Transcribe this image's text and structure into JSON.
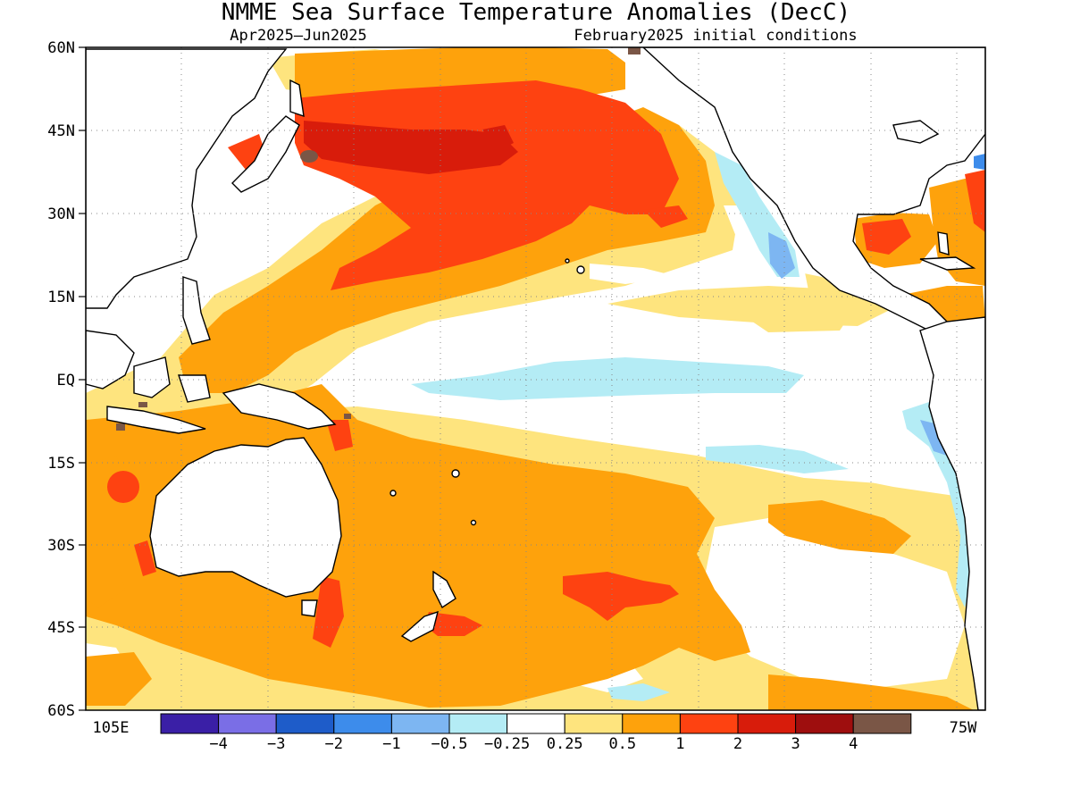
{
  "title": "NMME Sea Surface Temperature Anomalies (DecC)",
  "subtitle_left": "Apr2025–Jun2025",
  "subtitle_right": "February2025 initial conditions",
  "lat_labels": [
    "60N",
    "45N",
    "30N",
    "15N",
    "EQ",
    "15S",
    "30S",
    "45S",
    "60S"
  ],
  "lon_label_west": "105E",
  "lon_label_east": "75W",
  "legend": {
    "labels": [
      "−4",
      "−3",
      "−2",
      "−1",
      "−0.5",
      "−0.25",
      "0.25",
      "0.5",
      "1",
      "2",
      "3",
      "4"
    ],
    "colors": [
      "#3a1fa6",
      "#7a6ee6",
      "#1e5cc9",
      "#3d8ceb",
      "#7db6f2",
      "#b4ecf5",
      "#ffffff",
      "#fee47e",
      "#fea20c",
      "#fe4211",
      "#d81c0b",
      "#9e0e0e",
      "#7a5646"
    ]
  },
  "anomaly_palette": {
    "lt_blue": "#b4ecf5",
    "mid_blue": "#7db6f2",
    "blue": "#3d8ceb",
    "yellow": "#fee47e",
    "orange": "#fea20c",
    "red_orange": "#fe4211",
    "red": "#d81c0b",
    "brown": "#7a5646"
  }
}
